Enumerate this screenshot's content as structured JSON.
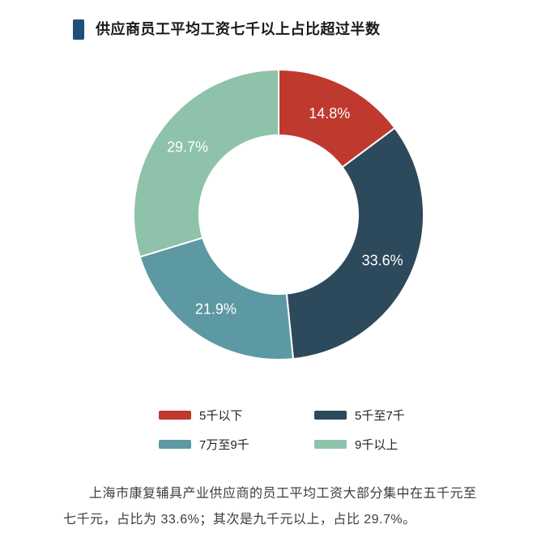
{
  "header": {
    "title": "供应商员工平均工资七千以上占比超过半数",
    "marker_color": "#1f4e79"
  },
  "chart_data": {
    "type": "pie",
    "subtype": "donut",
    "title": "供应商员工平均工资七千以上占比超过半数",
    "start_angle_deg": 0,
    "direction": "clockwise",
    "inner_radius_ratio": 0.545,
    "label_color": "#ffffff",
    "legend_position": "bottom",
    "slices": [
      {
        "label": "5千以下",
        "value": 14.8,
        "display": "14.8%",
        "color": "#bf392e"
      },
      {
        "label": "5千至7千",
        "value": 33.6,
        "display": "33.6%",
        "color": "#2d4a5c"
      },
      {
        "label": "7万至9千",
        "value": 21.9,
        "display": "21.9%",
        "color": "#5d99a3"
      },
      {
        "label": "9千以上",
        "value": 29.7,
        "display": "29.7%",
        "color": "#8fc2aa"
      }
    ]
  },
  "caption": {
    "text": "上海市康复辅具产业供应商的员工平均工资大部分集中在五千元至七千元，占比为 33.6%；其次是九千元以上，占比 29.7%。"
  }
}
